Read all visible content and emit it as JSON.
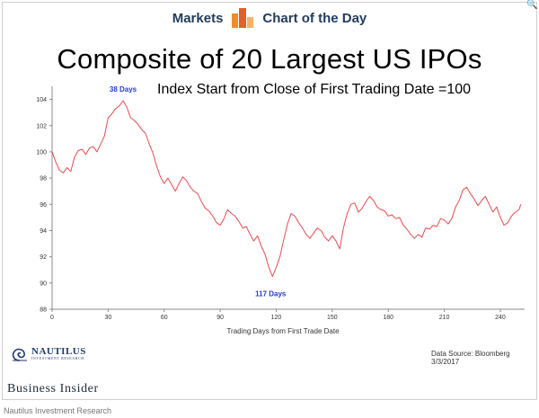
{
  "header": {
    "left": "Markets",
    "right": "Chart of the Day",
    "accent_colors": [
      "#f28b2b",
      "#e0612a",
      "#f6b26b"
    ]
  },
  "footer": {
    "brand": "Business Insider",
    "credit": "Nautilus Investment Research",
    "logo_name": "NAUTILUS",
    "logo_sub": "INVESTMENT RESEARCH"
  },
  "chart_data": {
    "type": "line",
    "title": "Composite of 20 Largest US IPOs",
    "subtitle": "Index Start from Close of First Trading Date =100",
    "xlabel": "Trading Days from First Trade Date",
    "ylabel": "",
    "xlim": [
      0,
      253
    ],
    "ylim": [
      88,
      105
    ],
    "xticks": [
      0,
      30,
      60,
      90,
      120,
      150,
      180,
      210,
      240
    ],
    "yticks": [
      88,
      90,
      92,
      94,
      96,
      98,
      100,
      102,
      104
    ],
    "grid": false,
    "line_color": "#f0494f",
    "annotations": [
      {
        "text": "38 Days",
        "x": 38,
        "y": 104.3,
        "color": "#1f3bd6"
      },
      {
        "text": "117 Days",
        "x": 117,
        "y": 90.1,
        "color": "#1f3bd6"
      }
    ],
    "source": "Data Source: Bloomberg  3/3/2017",
    "series": [
      {
        "values": [
          [
            0,
            100
          ],
          [
            2,
            99.2
          ],
          [
            4,
            98.6
          ],
          [
            6,
            98.4
          ],
          [
            8,
            98.8
          ],
          [
            10,
            98.5
          ],
          [
            12,
            99.6
          ],
          [
            14,
            100.1
          ],
          [
            16,
            100.2
          ],
          [
            18,
            99.8
          ],
          [
            20,
            100.3
          ],
          [
            22,
            100.4
          ],
          [
            24,
            100.0
          ],
          [
            26,
            100.6
          ],
          [
            28,
            101.2
          ],
          [
            30,
            102.6
          ],
          [
            32,
            102.9
          ],
          [
            34,
            103.3
          ],
          [
            36,
            103.5
          ],
          [
            38,
            103.9
          ],
          [
            40,
            103.4
          ],
          [
            42,
            102.6
          ],
          [
            44,
            102.4
          ],
          [
            46,
            102.1
          ],
          [
            48,
            101.7
          ],
          [
            50,
            101.4
          ],
          [
            52,
            100.6
          ],
          [
            54,
            99.9
          ],
          [
            56,
            98.9
          ],
          [
            58,
            98.1
          ],
          [
            60,
            97.6
          ],
          [
            62,
            98.0
          ],
          [
            64,
            97.5
          ],
          [
            66,
            97.0
          ],
          [
            68,
            97.6
          ],
          [
            70,
            98.1
          ],
          [
            72,
            97.8
          ],
          [
            74,
            97.3
          ],
          [
            76,
            97.0
          ],
          [
            78,
            96.8
          ],
          [
            80,
            96.2
          ],
          [
            82,
            95.7
          ],
          [
            84,
            95.5
          ],
          [
            86,
            95.1
          ],
          [
            88,
            94.6
          ],
          [
            90,
            94.4
          ],
          [
            92,
            94.9
          ],
          [
            94,
            95.6
          ],
          [
            96,
            95.3
          ],
          [
            98,
            95.1
          ],
          [
            100,
            94.7
          ],
          [
            102,
            94.2
          ],
          [
            104,
            94.3
          ],
          [
            106,
            93.7
          ],
          [
            108,
            93.2
          ],
          [
            110,
            93.6
          ],
          [
            112,
            92.8
          ],
          [
            114,
            92.2
          ],
          [
            116,
            91.2
          ],
          [
            118,
            90.5
          ],
          [
            120,
            91.2
          ],
          [
            122,
            92.0
          ],
          [
            124,
            93.3
          ],
          [
            126,
            94.5
          ],
          [
            128,
            95.3
          ],
          [
            130,
            95.1
          ],
          [
            132,
            94.6
          ],
          [
            134,
            94.2
          ],
          [
            136,
            93.7
          ],
          [
            138,
            93.4
          ],
          [
            140,
            93.8
          ],
          [
            142,
            94.2
          ],
          [
            144,
            94.0
          ],
          [
            146,
            93.5
          ],
          [
            148,
            93.2
          ],
          [
            150,
            93.6
          ],
          [
            152,
            93.2
          ],
          [
            154,
            92.6
          ],
          [
            156,
            94.2
          ],
          [
            158,
            95.3
          ],
          [
            160,
            96.0
          ],
          [
            162,
            96.1
          ],
          [
            164,
            95.4
          ],
          [
            166,
            95.7
          ],
          [
            168,
            96.2
          ],
          [
            170,
            96.6
          ],
          [
            172,
            96.3
          ],
          [
            174,
            95.8
          ],
          [
            176,
            95.6
          ],
          [
            178,
            95.5
          ],
          [
            180,
            95.1
          ],
          [
            182,
            95.2
          ],
          [
            184,
            94.9
          ],
          [
            186,
            95.0
          ],
          [
            188,
            94.4
          ],
          [
            190,
            94.1
          ],
          [
            192,
            93.7
          ],
          [
            194,
            93.4
          ],
          [
            196,
            93.7
          ],
          [
            198,
            93.5
          ],
          [
            200,
            94.2
          ],
          [
            202,
            94.1
          ],
          [
            204,
            94.4
          ],
          [
            206,
            94.3
          ],
          [
            208,
            94.9
          ],
          [
            210,
            94.8
          ],
          [
            212,
            94.5
          ],
          [
            214,
            94.9
          ],
          [
            216,
            95.8
          ],
          [
            218,
            96.3
          ],
          [
            220,
            97.1
          ],
          [
            222,
            97.3
          ],
          [
            224,
            96.8
          ],
          [
            226,
            96.4
          ],
          [
            228,
            95.9
          ],
          [
            230,
            96.3
          ],
          [
            232,
            96.6
          ],
          [
            234,
            96.0
          ],
          [
            236,
            95.4
          ],
          [
            238,
            95.8
          ],
          [
            240,
            95.0
          ],
          [
            242,
            94.4
          ],
          [
            244,
            94.6
          ],
          [
            246,
            95.1
          ],
          [
            248,
            95.4
          ],
          [
            250,
            95.6
          ],
          [
            251,
            96.0
          ]
        ]
      }
    ]
  }
}
